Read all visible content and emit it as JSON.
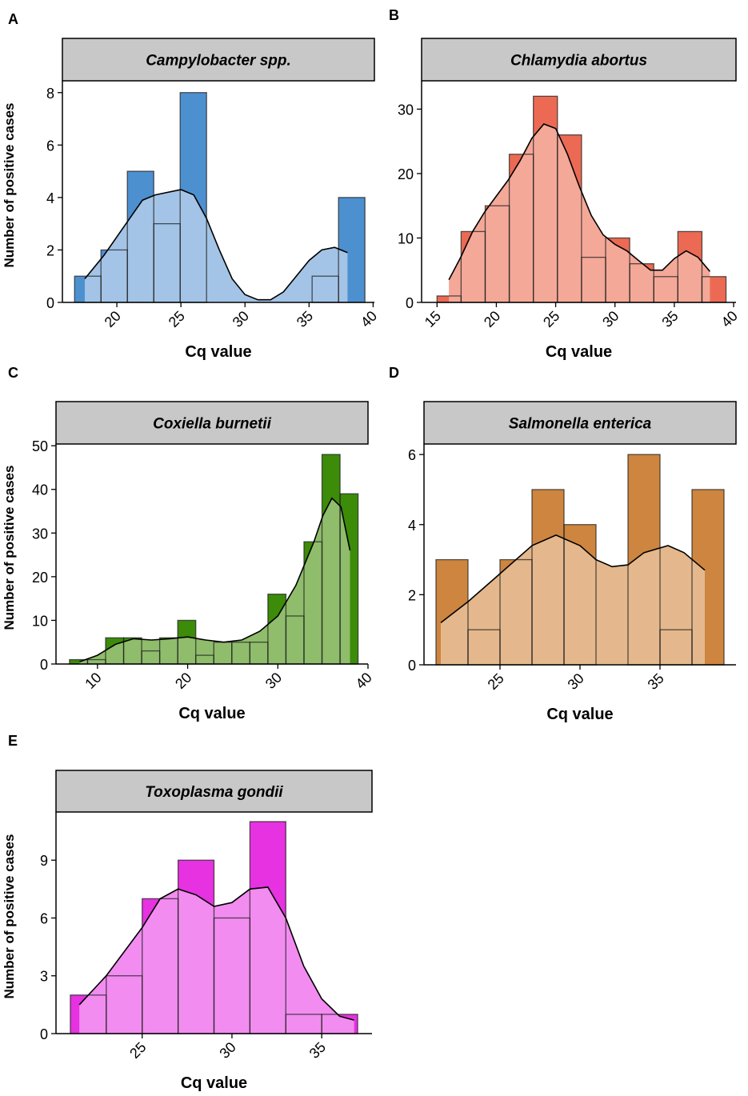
{
  "chart_data": [
    {
      "type": "histogram",
      "panel_label": "A",
      "title": "Campylobacter spp.",
      "xlabel": "Cq value",
      "ylabel": "Number of positive cases",
      "color": "#4d90d0",
      "kde_color": "#a3c4e6",
      "bins": [
        16.7,
        18.76,
        20.82,
        22.88,
        24.94,
        27.0,
        29.06,
        31.12,
        33.18,
        35.24,
        37.3,
        39.36
      ],
      "values": [
        1,
        2,
        5,
        3,
        8,
        0,
        0,
        0,
        0,
        1,
        4
      ],
      "kde_x": [
        17.5,
        19,
        21,
        22,
        23,
        25,
        26,
        27,
        28,
        29,
        30,
        31,
        32,
        33,
        34,
        35,
        36,
        37,
        38
      ],
      "kde_y": [
        0.9,
        1.8,
        3.2,
        3.9,
        4.1,
        4.3,
        4.1,
        3.2,
        2.0,
        0.9,
        0.3,
        0.1,
        0.1,
        0.4,
        1.0,
        1.6,
        2.0,
        2.1,
        1.9
      ],
      "xlim": [
        15.75,
        40.1
      ],
      "xticks": [
        20,
        25,
        30,
        35,
        40
      ],
      "ylim": [
        0,
        8.45
      ],
      "yticks": [
        0,
        2,
        4,
        6,
        8
      ]
    },
    {
      "type": "histogram",
      "panel_label": "B",
      "title": "Chlamydia abortus",
      "xlabel": "Cq value",
      "color": "#ec6a53",
      "kde_color": "#f4a898",
      "bins": [
        15,
        17.03,
        19.06,
        21.09,
        23.12,
        25.15,
        27.18,
        29.21,
        31.24,
        33.27,
        35.3,
        37.33,
        39.36
      ],
      "values": [
        1,
        11,
        15,
        23,
        32,
        26,
        7,
        10,
        6,
        4,
        11,
        4
      ],
      "kde_x": [
        16,
        17,
        18,
        19,
        20,
        21,
        22,
        23,
        24,
        25,
        26,
        27,
        28,
        29,
        30,
        31,
        32,
        33,
        34,
        35,
        36,
        37,
        38
      ],
      "kde_y": [
        3.5,
        7,
        11,
        14,
        16.5,
        19,
        22,
        25.5,
        27.7,
        27,
        23,
        18,
        13.5,
        10.5,
        9,
        8,
        6.5,
        5,
        5,
        6.8,
        8,
        7,
        4.8
      ],
      "xlim": [
        13.7,
        40.2
      ],
      "xticks": [
        15,
        20,
        25,
        30,
        35,
        40
      ],
      "ylim": [
        0,
        34.4
      ],
      "yticks": [
        0,
        10,
        20,
        30
      ]
    },
    {
      "type": "histogram",
      "panel_label": "C",
      "title": "Coxiella burnetii",
      "xlabel": "Cq value",
      "ylabel": "Number of positive cases",
      "color": "#3c8b09",
      "kde_color": "#8fbd6b",
      "bins": [
        6.9,
        8.9,
        10.9,
        12.9,
        14.9,
        16.9,
        18.9,
        20.9,
        22.9,
        24.9,
        26.9,
        28.9,
        30.9,
        32.9,
        34.9,
        36.9,
        38.9
      ],
      "values": [
        1,
        1,
        6,
        6,
        3,
        6,
        10,
        2,
        5,
        5,
        5,
        16,
        11,
        28,
        48,
        39
      ],
      "kde_x": [
        8,
        10,
        12,
        14,
        16,
        18,
        20,
        22,
        24,
        26,
        28,
        30,
        32,
        34,
        35,
        36,
        37,
        38
      ],
      "kde_y": [
        0.5,
        2,
        4.5,
        5.8,
        5.5,
        5.8,
        6.2,
        5.5,
        5,
        5.5,
        7.5,
        11,
        18,
        28,
        34,
        38,
        36,
        26
      ],
      "xlim": [
        5.4,
        40
      ],
      "xticks": [
        10,
        20,
        30,
        40
      ],
      "ylim": [
        0,
        50.4
      ],
      "yticks": [
        0,
        10,
        20,
        30,
        40,
        50
      ]
    },
    {
      "type": "histogram",
      "panel_label": "D",
      "title": "Salmonella enterica",
      "xlabel": "Cq value",
      "color": "#cd853f",
      "kde_color": "#e4b88c",
      "bins": [
        21,
        23,
        25,
        27,
        29,
        31,
        33,
        35,
        37,
        39
      ],
      "values": [
        3,
        1,
        3,
        5,
        4,
        0,
        6,
        1,
        5
      ],
      "kde_x": [
        21.3,
        23,
        25,
        27,
        28.5,
        30,
        31,
        32,
        33,
        34,
        35.5,
        36.5,
        37.8
      ],
      "kde_y": [
        1.2,
        1.8,
        2.6,
        3.4,
        3.7,
        3.4,
        3.0,
        2.8,
        2.85,
        3.2,
        3.4,
        3.2,
        2.7
      ],
      "xlim": [
        20.25,
        39.75
      ],
      "xticks": [
        25,
        30,
        35
      ],
      "ylim": [
        0,
        6.3
      ],
      "yticks": [
        0,
        2,
        4,
        6
      ]
    },
    {
      "type": "histogram",
      "panel_label": "E",
      "title": "Toxoplasma gondii",
      "xlabel": "Cq value",
      "ylabel": "Number of positive cases",
      "color": "#e632e0",
      "kde_color": "#f28cf0",
      "bins": [
        21,
        23,
        25,
        27,
        29,
        31,
        33,
        35,
        37
      ],
      "values": [
        2,
        3,
        7,
        9,
        6,
        11,
        1,
        1
      ],
      "kde_x": [
        21.5,
        23,
        25,
        26,
        27,
        28,
        29,
        30,
        31,
        32,
        33,
        34,
        35,
        36,
        36.8
      ],
      "kde_y": [
        1.5,
        3,
        5.5,
        7,
        7.5,
        7.2,
        6.6,
        6.8,
        7.5,
        7.6,
        6,
        3.5,
        1.8,
        0.9,
        0.7
      ],
      "xlim": [
        20.2,
        37.8
      ],
      "xticks": [
        25,
        30,
        35
      ],
      "ylim": [
        0,
        11.5
      ],
      "yticks": [
        0,
        3,
        6,
        9
      ]
    }
  ]
}
